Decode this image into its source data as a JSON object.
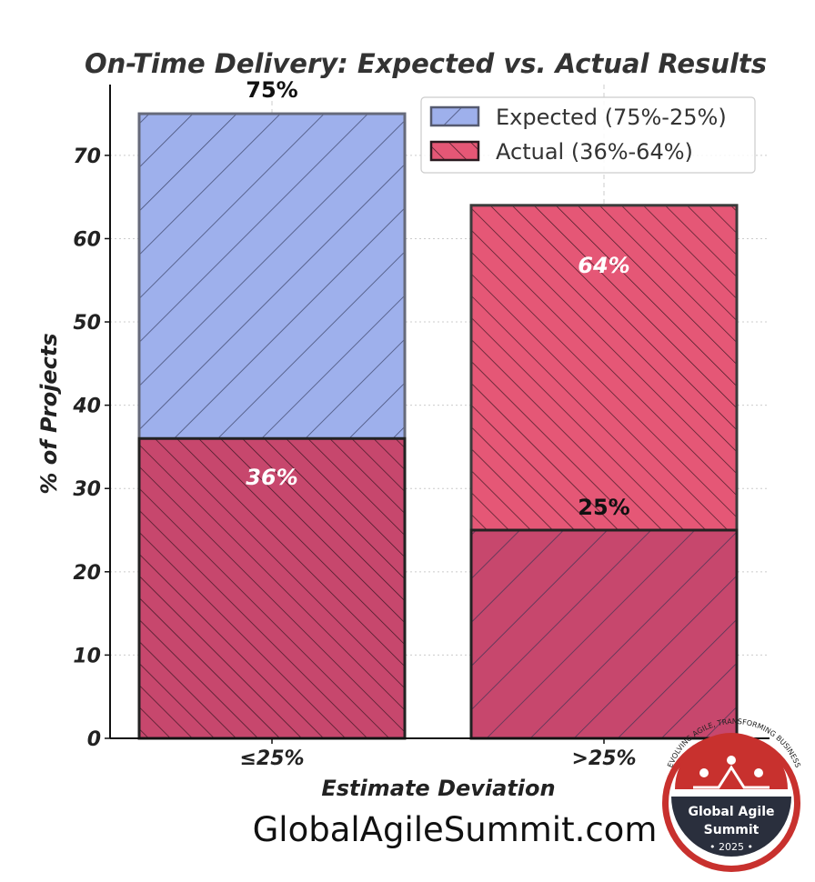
{
  "chart_data": {
    "type": "bar",
    "title": "On-Time Delivery: Expected vs. Actual Results",
    "xlabel": "Estimate Deviation",
    "ylabel": "% of Projects",
    "categories": [
      "≤25%",
      ">25%"
    ],
    "ylim": [
      0,
      78.5
    ],
    "yticks": [
      0,
      10,
      20,
      30,
      40,
      50,
      60,
      70
    ],
    "grid": true,
    "legend_position": "top-right",
    "series": [
      {
        "name": "Expected (75%-25%)",
        "values": [
          75,
          25
        ],
        "labels": [
          "75%",
          "25%"
        ],
        "color": "#7f98e6"
      },
      {
        "name": "Actual (36%-64%)",
        "values": [
          36,
          64
        ],
        "labels": [
          "36%",
          "64%"
        ],
        "color": "#e0335a"
      }
    ]
  },
  "footer": {
    "website": "GlobalAgileSummit.com"
  },
  "badge": {
    "arc_text": "EVOLVING AGILE, TRANSFORMING BUSINESS",
    "name_line1": "Global Agile",
    "name_line2": "Summit",
    "year": "• 2025 •",
    "colors": {
      "red": "#c8312e",
      "navy": "#2a2f3d"
    }
  }
}
